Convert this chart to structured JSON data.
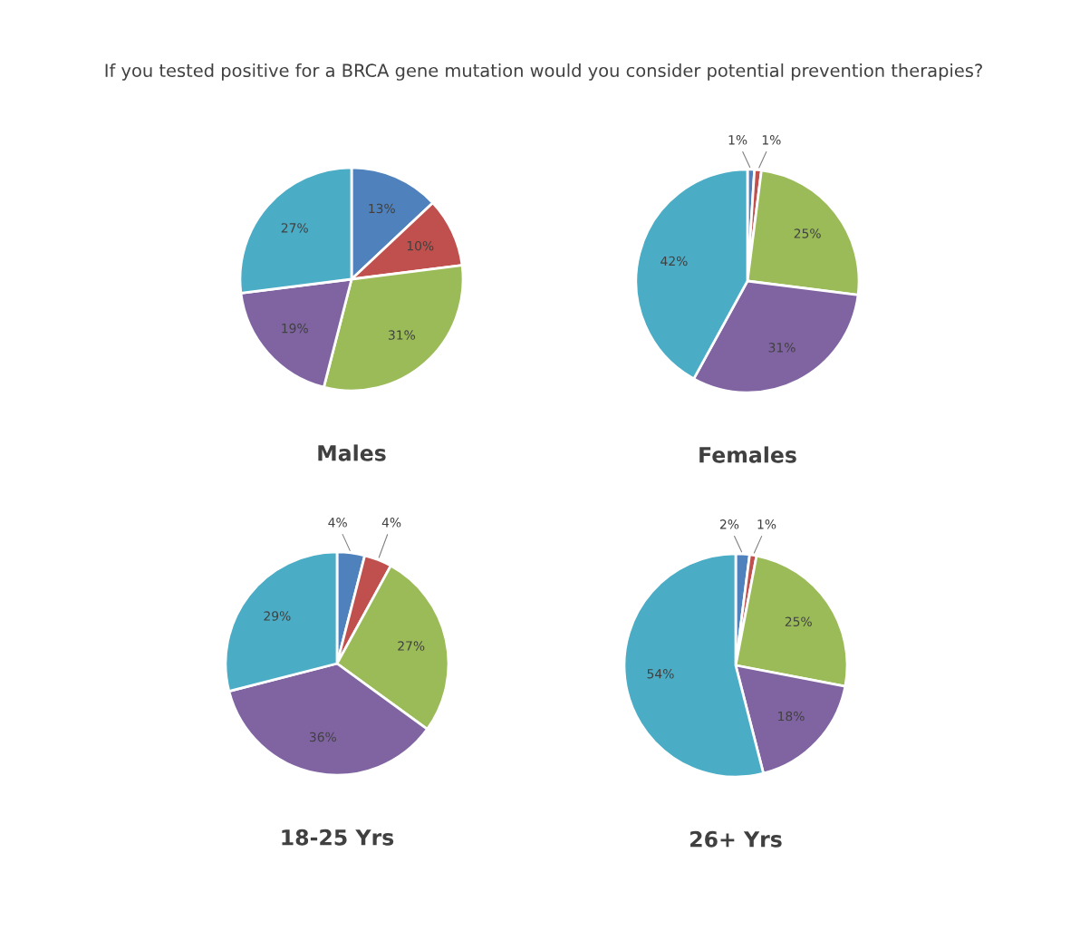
{
  "chart_data": [
    {
      "type": "pie",
      "title": "If you tested positive for a BRCA gene mutation would you consider potential prevention therapies?",
      "xlabel": "Males",
      "categories": [
        null,
        null,
        null,
        null,
        null
      ],
      "values": [
        13,
        10,
        31,
        19,
        27
      ],
      "value_labels": [
        "13%",
        "10%",
        "31%",
        "19%",
        "27%"
      ],
      "colors": [
        "#4f81bd",
        "#c0504d",
        "#9bbb59",
        "#8064a2",
        "#4bacc6"
      ]
    },
    {
      "type": "pie",
      "xlabel": "Females",
      "categories": [
        null,
        null,
        null,
        null,
        null
      ],
      "values": [
        1,
        1,
        25,
        31,
        42
      ],
      "value_labels": [
        "1%",
        "1%",
        "25%",
        "31%",
        "42%"
      ],
      "colors": [
        "#4f81bd",
        "#c0504d",
        "#9bbb59",
        "#8064a2",
        "#4bacc6"
      ]
    },
    {
      "type": "pie",
      "xlabel": "18-25 Yrs",
      "categories": [
        null,
        null,
        null,
        null,
        null
      ],
      "values": [
        4,
        4,
        27,
        36,
        29
      ],
      "value_labels": [
        "4%",
        "4%",
        "27%",
        "36%",
        "29%"
      ],
      "colors": [
        "#4f81bd",
        "#c0504d",
        "#9bbb59",
        "#8064a2",
        "#4bacc6"
      ]
    },
    {
      "type": "pie",
      "xlabel": "26+ Yrs",
      "categories": [
        null,
        null,
        null,
        null,
        null
      ],
      "values": [
        2,
        1,
        25,
        18,
        54
      ],
      "value_labels": [
        "2%",
        "1%",
        "25%",
        "18%",
        "54%"
      ],
      "colors": [
        "#4f81bd",
        "#c0504d",
        "#9bbb59",
        "#8064a2",
        "#4bacc6"
      ]
    }
  ]
}
